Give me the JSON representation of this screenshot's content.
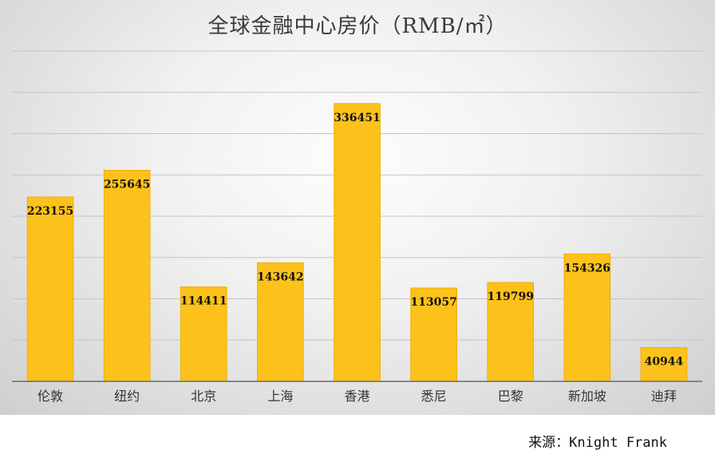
{
  "chart_data": {
    "type": "bar",
    "title": "全球金融中心房价（RMB/㎡）",
    "categories": [
      "伦敦",
      "纽约",
      "北京",
      "上海",
      "香港",
      "悉尼",
      "巴黎",
      "新加坡",
      "迪拜"
    ],
    "values": [
      223155,
      255645,
      114411,
      143642,
      336451,
      113057,
      119799,
      154326,
      40944
    ],
    "data_labels": [
      "223155",
      "255645",
      "114411",
      "143642",
      "336451",
      "113057",
      "119799",
      "154326",
      "40944"
    ],
    "ylim": [
      0,
      400000
    ],
    "grid": true,
    "legend": "none",
    "bar_color": "#fcc21b",
    "bar_edge_color": "#f3ad00"
  },
  "source": "来源：Knight Frank"
}
